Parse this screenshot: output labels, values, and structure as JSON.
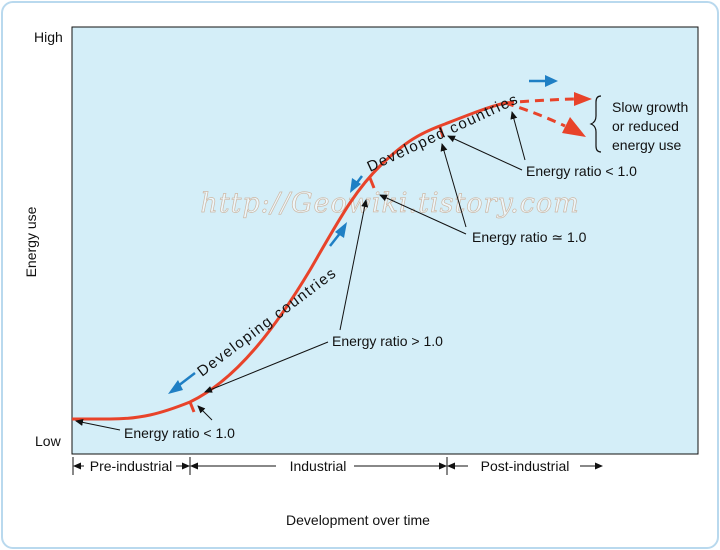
{
  "y_axis": {
    "title": "Energy use",
    "high_label": "High",
    "low_label": "Low"
  },
  "x_axis": {
    "title": "Development over time"
  },
  "phases": [
    "Pre-industrial",
    "Industrial",
    "Post-industrial"
  ],
  "curve_labels": {
    "developing": "Developing countries",
    "developed": "Developed countries"
  },
  "annotations": {
    "ratio_lt_1_low": "Energy ratio < 1.0",
    "ratio_gt_1": "Energy ratio > 1.0",
    "ratio_approx_1": "Energy ratio ≃ 1.0",
    "ratio_lt_1_high": "Energy ratio < 1.0"
  },
  "outcome_lines": [
    "Slow growth",
    "or reduced",
    "energy use"
  ],
  "watermark": "http://Geowiki.tistory.com",
  "colors": {
    "plot_background": "#d4eef8",
    "curve": "#e8432a",
    "direction_arrow": "#1f7fc4",
    "frame": "#b9d9ee"
  }
}
